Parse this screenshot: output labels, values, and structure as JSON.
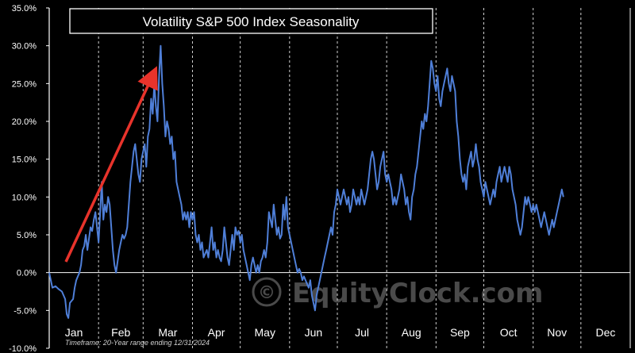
{
  "chart_data": {
    "type": "line",
    "title": "Volatility S&P 500 Index Seasonality",
    "xlabel": "",
    "ylabel": "",
    "ylim": [
      -10,
      35
    ],
    "y_ticks": [
      35,
      30,
      25,
      20,
      15,
      10,
      5,
      0,
      -5,
      -10
    ],
    "y_tick_labels": [
      "35.0%",
      "30.0%",
      "25.0%",
      "20.0%",
      "15.0%",
      "10.0%",
      "5.0%",
      "0.0%",
      "-5.0%",
      "-10.0%"
    ],
    "x_unit": "day of year",
    "xlim": [
      0,
      365
    ],
    "months": [
      "Jan",
      "Feb",
      "Mar",
      "Apr",
      "May",
      "Jun",
      "Jul",
      "Aug",
      "Sep",
      "Oct",
      "Nov",
      "Dec"
    ],
    "month_start_days": [
      0,
      31,
      59,
      90,
      120,
      151,
      181,
      212,
      243,
      273,
      304,
      334
    ],
    "grid": "vertical dashed month separators",
    "footnote": "Timeframe: 20-Year range ending 12/31/2024",
    "watermark": "EquityClock.com",
    "series": [
      {
        "color": "#4f7fd8",
        "points": [
          [
            0,
            0
          ],
          [
            1,
            -1
          ],
          [
            2,
            -2
          ],
          [
            4,
            -1.8
          ],
          [
            6,
            -2.2
          ],
          [
            8,
            -2.5
          ],
          [
            10,
            -3.5
          ],
          [
            11,
            -5.5
          ],
          [
            12,
            -6
          ],
          [
            13,
            -4
          ],
          [
            15,
            -3.5
          ],
          [
            16,
            -2
          ],
          [
            17,
            -1
          ],
          [
            18,
            -0.5
          ],
          [
            19,
            0
          ],
          [
            20,
            1
          ],
          [
            21,
            3
          ],
          [
            22,
            3.5
          ],
          [
            23,
            5
          ],
          [
            24,
            3
          ],
          [
            25,
            4.5
          ],
          [
            26,
            6
          ],
          [
            27,
            5.5
          ],
          [
            28,
            7
          ],
          [
            29,
            8
          ],
          [
            30,
            6
          ],
          [
            31,
            4
          ],
          [
            32,
            8
          ],
          [
            33,
            12
          ],
          [
            34,
            7
          ],
          [
            35,
            9
          ],
          [
            36,
            8
          ],
          [
            37,
            10
          ],
          [
            38,
            9
          ],
          [
            39,
            6
          ],
          [
            40,
            3
          ],
          [
            41,
            1
          ],
          [
            42,
            0
          ],
          [
            43,
            1.5
          ],
          [
            44,
            3
          ],
          [
            45,
            4
          ],
          [
            46,
            5
          ],
          [
            47,
            4.5
          ],
          [
            48,
            5
          ],
          [
            49,
            6
          ],
          [
            50,
            9
          ],
          [
            51,
            12
          ],
          [
            52,
            14
          ],
          [
            53,
            16
          ],
          [
            54,
            17
          ],
          [
            55,
            15
          ],
          [
            56,
            13
          ],
          [
            57,
            12
          ],
          [
            58,
            15
          ],
          [
            59,
            16
          ],
          [
            60,
            17
          ],
          [
            61,
            14
          ],
          [
            62,
            18
          ],
          [
            63,
            19
          ],
          [
            64,
            23
          ],
          [
            65,
            21
          ],
          [
            66,
            25
          ],
          [
            67,
            22
          ],
          [
            68,
            20
          ],
          [
            69,
            26
          ],
          [
            70,
            30
          ],
          [
            71,
            25
          ],
          [
            72,
            22
          ],
          [
            73,
            18
          ],
          [
            74,
            20
          ],
          [
            75,
            19
          ],
          [
            76,
            17
          ],
          [
            77,
            18
          ],
          [
            78,
            15
          ],
          [
            79,
            16
          ],
          [
            80,
            12
          ],
          [
            81,
            11
          ],
          [
            82,
            10
          ],
          [
            83,
            9
          ],
          [
            84,
            7
          ],
          [
            85,
            8
          ],
          [
            86,
            7
          ],
          [
            87,
            8
          ],
          [
            88,
            6
          ],
          [
            89,
            8
          ],
          [
            90,
            7
          ],
          [
            91,
            8
          ],
          [
            92,
            5
          ],
          [
            93,
            4
          ],
          [
            94,
            5
          ],
          [
            95,
            3
          ],
          [
            96,
            4
          ],
          [
            97,
            2
          ],
          [
            98,
            2.5
          ],
          [
            99,
            3
          ],
          [
            100,
            2
          ],
          [
            101,
            4
          ],
          [
            102,
            6
          ],
          [
            103,
            3
          ],
          [
            104,
            4
          ],
          [
            105,
            2
          ],
          [
            106,
            3
          ],
          [
            107,
            2
          ],
          [
            108,
            1.5
          ],
          [
            109,
            3
          ],
          [
            110,
            6
          ],
          [
            111,
            4
          ],
          [
            112,
            2
          ],
          [
            113,
            1
          ],
          [
            114,
            3
          ],
          [
            115,
            5
          ],
          [
            116,
            3
          ],
          [
            117,
            6
          ],
          [
            118,
            5
          ],
          [
            119,
            5.5
          ],
          [
            120,
            4
          ],
          [
            121,
            5
          ],
          [
            122,
            3
          ],
          [
            123,
            2
          ],
          [
            124,
            1
          ],
          [
            125,
            0
          ],
          [
            126,
            -1
          ],
          [
            127,
            1
          ],
          [
            128,
            2
          ],
          [
            129,
            1
          ],
          [
            130,
            0
          ],
          [
            131,
            1
          ],
          [
            132,
            0
          ],
          [
            133,
            1.5
          ],
          [
            134,
            2
          ],
          [
            135,
            3
          ],
          [
            136,
            2
          ],
          [
            137,
            4
          ],
          [
            138,
            8
          ],
          [
            139,
            7
          ],
          [
            140,
            6
          ],
          [
            141,
            9
          ],
          [
            142,
            7
          ],
          [
            143,
            5
          ],
          [
            144,
            6
          ],
          [
            145,
            4.5
          ],
          [
            146,
            5
          ],
          [
            147,
            9
          ],
          [
            148,
            7
          ],
          [
            149,
            10
          ],
          [
            150,
            6
          ],
          [
            151,
            5
          ],
          [
            152,
            4
          ],
          [
            153,
            3
          ],
          [
            154,
            2
          ],
          [
            155,
            1
          ],
          [
            156,
            0
          ],
          [
            157,
            0.5
          ],
          [
            158,
            0
          ],
          [
            159,
            -1
          ],
          [
            160,
            -0.5
          ],
          [
            161,
            -1
          ],
          [
            162,
            -1.5
          ],
          [
            163,
            -2
          ],
          [
            164,
            -1
          ],
          [
            165,
            -3
          ],
          [
            166,
            -4
          ],
          [
            167,
            -5
          ],
          [
            168,
            -3
          ],
          [
            169,
            -2
          ],
          [
            170,
            -1
          ],
          [
            171,
            0
          ],
          [
            172,
            1
          ],
          [
            173,
            2
          ],
          [
            174,
            3
          ],
          [
            175,
            4
          ],
          [
            176,
            5
          ],
          [
            177,
            6
          ],
          [
            178,
            5
          ],
          [
            179,
            8
          ],
          [
            180,
            9
          ],
          [
            181,
            11
          ],
          [
            182,
            10
          ],
          [
            183,
            9
          ],
          [
            184,
            10
          ],
          [
            185,
            11
          ],
          [
            186,
            10
          ],
          [
            187,
            9
          ],
          [
            188,
            10
          ],
          [
            189,
            8
          ],
          [
            190,
            9
          ],
          [
            191,
            11
          ],
          [
            192,
            10
          ],
          [
            193,
            9
          ],
          [
            194,
            10
          ],
          [
            195,
            9
          ],
          [
            196,
            11
          ],
          [
            197,
            10
          ],
          [
            198,
            9
          ],
          [
            199,
            10
          ],
          [
            200,
            11
          ],
          [
            201,
            13
          ],
          [
            202,
            15
          ],
          [
            203,
            16
          ],
          [
            204,
            15
          ],
          [
            205,
            13
          ],
          [
            206,
            11
          ],
          [
            207,
            12
          ],
          [
            208,
            14
          ],
          [
            209,
            15
          ],
          [
            210,
            16
          ],
          [
            211,
            13
          ],
          [
            212,
            12
          ],
          [
            213,
            13
          ],
          [
            214,
            12
          ],
          [
            215,
            11
          ],
          [
            216,
            9
          ],
          [
            217,
            10
          ],
          [
            218,
            9
          ],
          [
            219,
            10
          ],
          [
            220,
            11
          ],
          [
            221,
            13
          ],
          [
            222,
            12
          ],
          [
            223,
            11
          ],
          [
            224,
            9
          ],
          [
            225,
            10
          ],
          [
            226,
            8
          ],
          [
            227,
            7
          ],
          [
            228,
            10
          ],
          [
            229,
            11
          ],
          [
            230,
            13
          ],
          [
            231,
            14
          ],
          [
            232,
            16
          ],
          [
            233,
            18
          ],
          [
            234,
            20
          ],
          [
            235,
            19
          ],
          [
            236,
            21
          ],
          [
            237,
            20
          ],
          [
            238,
            22
          ],
          [
            239,
            25
          ],
          [
            240,
            28
          ],
          [
            241,
            27
          ],
          [
            242,
            25
          ],
          [
            243,
            24
          ],
          [
            244,
            26
          ],
          [
            245,
            23
          ],
          [
            246,
            22
          ],
          [
            247,
            24
          ],
          [
            248,
            25
          ],
          [
            249,
            26
          ],
          [
            250,
            27
          ],
          [
            251,
            25
          ],
          [
            252,
            24
          ],
          [
            253,
            26
          ],
          [
            254,
            25
          ],
          [
            255,
            24
          ],
          [
            256,
            20
          ],
          [
            257,
            18
          ],
          [
            258,
            15
          ],
          [
            259,
            13
          ],
          [
            260,
            12
          ],
          [
            261,
            13
          ],
          [
            262,
            11
          ],
          [
            263,
            14
          ],
          [
            264,
            15
          ],
          [
            265,
            16
          ],
          [
            266,
            14
          ],
          [
            267,
            15
          ],
          [
            268,
            17
          ],
          [
            269,
            15
          ],
          [
            270,
            14
          ],
          [
            271,
            12
          ],
          [
            272,
            11
          ],
          [
            273,
            10
          ],
          [
            274,
            12
          ],
          [
            275,
            11
          ],
          [
            276,
            10
          ],
          [
            277,
            9
          ],
          [
            278,
            10
          ],
          [
            279,
            11
          ],
          [
            280,
            10
          ],
          [
            281,
            12
          ],
          [
            282,
            13
          ],
          [
            283,
            14
          ],
          [
            284,
            12
          ],
          [
            285,
            13
          ],
          [
            286,
            14
          ],
          [
            287,
            13
          ],
          [
            288,
            12
          ],
          [
            289,
            14
          ],
          [
            290,
            13
          ],
          [
            291,
            11
          ],
          [
            292,
            10
          ],
          [
            293,
            9
          ],
          [
            294,
            7
          ],
          [
            295,
            6
          ],
          [
            296,
            5
          ],
          [
            297,
            6
          ],
          [
            298,
            8
          ],
          [
            299,
            10
          ],
          [
            300,
            9
          ],
          [
            301,
            10
          ],
          [
            302,
            9
          ],
          [
            303,
            8
          ],
          [
            304,
            9
          ],
          [
            305,
            8
          ],
          [
            306,
            9
          ],
          [
            307,
            8
          ],
          [
            308,
            7
          ],
          [
            309,
            6
          ],
          [
            310,
            7
          ],
          [
            311,
            8
          ],
          [
            312,
            7
          ],
          [
            313,
            6
          ],
          [
            314,
            5
          ],
          [
            315,
            6
          ],
          [
            316,
            7
          ],
          [
            317,
            6
          ],
          [
            318,
            7
          ],
          [
            319,
            8
          ],
          [
            320,
            9
          ],
          [
            321,
            10
          ],
          [
            322,
            11
          ],
          [
            323,
            10
          ]
        ]
      }
    ]
  }
}
